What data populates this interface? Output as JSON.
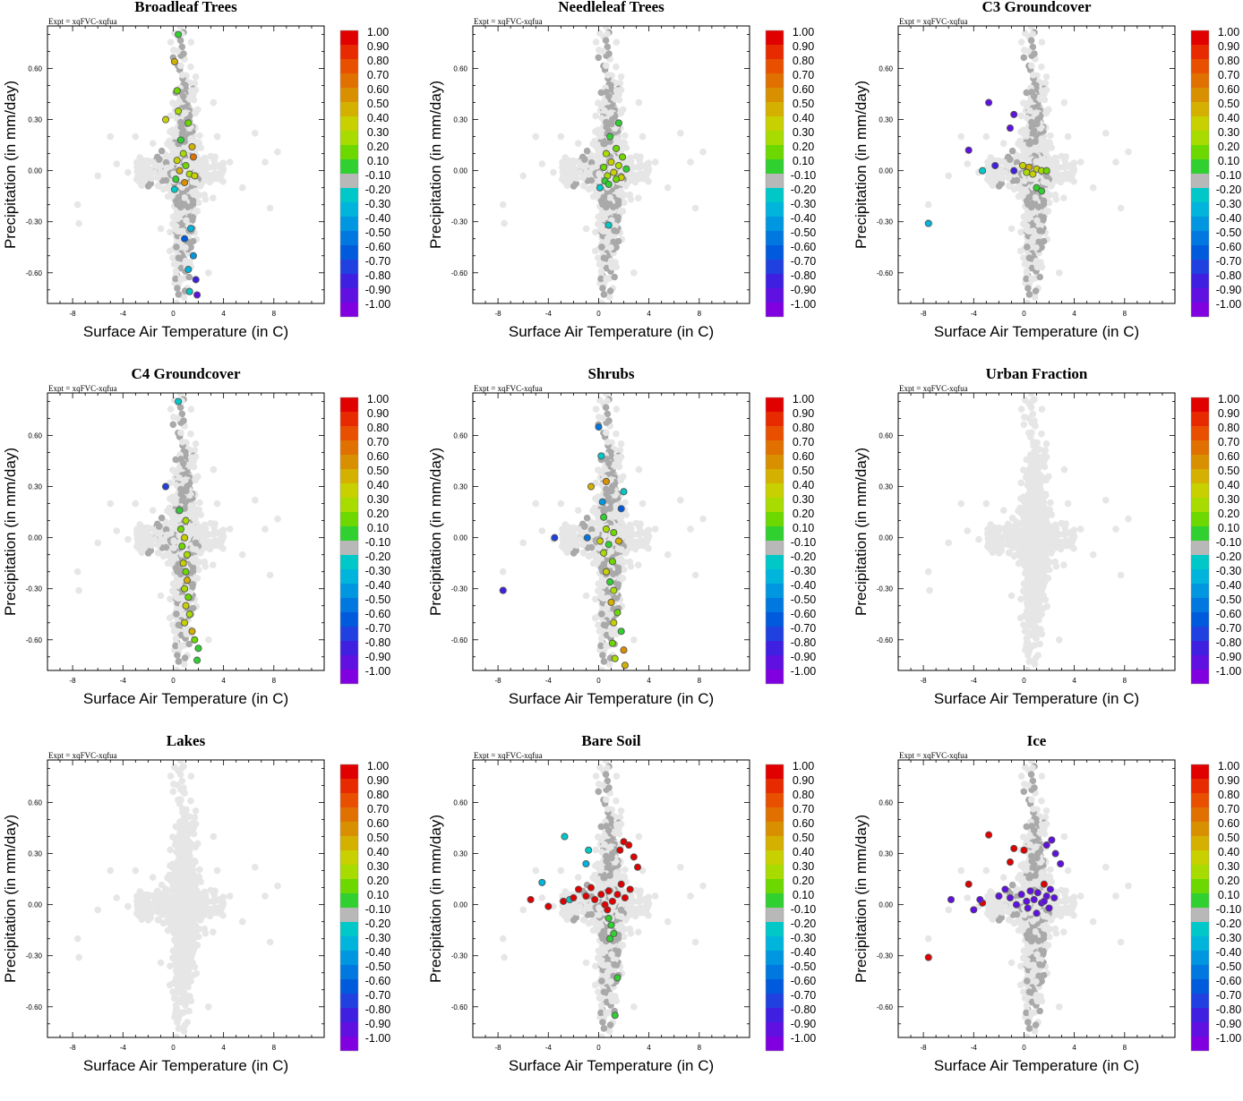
{
  "figure": {
    "experiment_label": "Expt = xqFVC-xqfua",
    "xlabel": "Surface Air Temperature (in C)",
    "ylabel": "Precipitation (in mm/day)",
    "x_ticks": [
      "-8",
      "-4",
      "0",
      "4",
      "8"
    ],
    "y_ticks": [
      "0.60",
      "0.30",
      "0.00",
      "-0.30",
      "-0.60"
    ],
    "colorbar_labels": [
      "1.00",
      "0.90",
      "0.80",
      "0.70",
      "0.60",
      "0.50",
      "0.40",
      "0.30",
      "0.20",
      "0.10",
      "-0.10",
      "-0.20",
      "-0.30",
      "-0.40",
      "-0.50",
      "-0.60",
      "-0.70",
      "-0.80",
      "-0.90",
      "-1.00"
    ],
    "colorbar_colors": [
      "#e00000",
      "#e82a00",
      "#e85000",
      "#e07000",
      "#d89000",
      "#d4b000",
      "#c8d000",
      "#a8dc00",
      "#6cd800",
      "#30d030",
      "#b8b8b8",
      "#00c8c8",
      "#00b4dc",
      "#0096e0",
      "#0078e0",
      "#005adc",
      "#2040e0",
      "#4020e0",
      "#6010e0",
      "#8000e0"
    ]
  },
  "chart_data": [
    {
      "type": "scatter",
      "title": "Broadleaf Trees",
      "xlabel": "Surface Air Temperature (in C)",
      "ylabel": "Precipitation (in mm/day)",
      "xlim": [
        -10,
        12
      ],
      "ylim": [
        -0.78,
        0.85
      ],
      "highlights": [
        {
          "x": 0.4,
          "y": 0.8,
          "v": 0.1
        },
        {
          "x": 0.1,
          "y": 0.64,
          "v": 0.5
        },
        {
          "x": 0.3,
          "y": 0.47,
          "v": 0.2
        },
        {
          "x": -0.6,
          "y": 0.3,
          "v": 0.4
        },
        {
          "x": 0.4,
          "y": 0.35,
          "v": 0.3
        },
        {
          "x": 1.2,
          "y": 0.28,
          "v": 0.2
        },
        {
          "x": 0.6,
          "y": 0.18,
          "v": 0.1
        },
        {
          "x": 1.5,
          "y": 0.14,
          "v": 0.5
        },
        {
          "x": 0.8,
          "y": 0.1,
          "v": 0.3
        },
        {
          "x": 1.6,
          "y": 0.08,
          "v": 0.7
        },
        {
          "x": 0.3,
          "y": 0.06,
          "v": 0.4
        },
        {
          "x": 1.0,
          "y": 0.03,
          "v": 0.2
        },
        {
          "x": 0.5,
          "y": 0.0,
          "v": 0.5
        },
        {
          "x": 1.3,
          "y": -0.02,
          "v": 0.3
        },
        {
          "x": 0.2,
          "y": -0.05,
          "v": 0.1
        },
        {
          "x": 1.7,
          "y": -0.03,
          "v": 0.4
        },
        {
          "x": 0.9,
          "y": -0.07,
          "v": 0.6
        },
        {
          "x": 0.1,
          "y": -0.11,
          "v": -0.2
        },
        {
          "x": 1.4,
          "y": -0.34,
          "v": -0.3
        },
        {
          "x": 0.9,
          "y": -0.4,
          "v": -0.6
        },
        {
          "x": 1.6,
          "y": -0.5,
          "v": -0.4
        },
        {
          "x": 1.2,
          "y": -0.58,
          "v": -0.3
        },
        {
          "x": 1.8,
          "y": -0.64,
          "v": -0.8
        },
        {
          "x": 1.3,
          "y": -0.71,
          "v": -0.2
        },
        {
          "x": 1.9,
          "y": -0.73,
          "v": -0.9
        },
        {
          "x": 2.0,
          "y": -0.82,
          "v": -0.8
        }
      ]
    },
    {
      "type": "scatter",
      "title": "Needleleaf Trees",
      "xlabel": "Surface Air Temperature (in C)",
      "ylabel": "Precipitation (in mm/day)",
      "xlim": [
        -10,
        12
      ],
      "ylim": [
        -0.78,
        0.85
      ],
      "highlights": [
        {
          "x": 1.6,
          "y": 0.28,
          "v": 0.1
        },
        {
          "x": 0.9,
          "y": 0.2,
          "v": 0.1
        },
        {
          "x": 1.4,
          "y": 0.13,
          "v": 0.2
        },
        {
          "x": 0.6,
          "y": 0.1,
          "v": 0.3
        },
        {
          "x": 1.9,
          "y": 0.08,
          "v": 0.2
        },
        {
          "x": 1.0,
          "y": 0.05,
          "v": 0.4
        },
        {
          "x": 1.6,
          "y": 0.03,
          "v": 0.3
        },
        {
          "x": 0.4,
          "y": 0.02,
          "v": 0.2
        },
        {
          "x": 2.2,
          "y": 0.01,
          "v": 0.1
        },
        {
          "x": 1.2,
          "y": -0.01,
          "v": 0.4
        },
        {
          "x": 0.7,
          "y": -0.03,
          "v": 0.3
        },
        {
          "x": 1.8,
          "y": -0.04,
          "v": 0.4
        },
        {
          "x": 0.5,
          "y": -0.06,
          "v": 0.1
        },
        {
          "x": 1.4,
          "y": -0.05,
          "v": 0.2
        },
        {
          "x": 0.8,
          "y": -0.08,
          "v": 0.1
        },
        {
          "x": 0.1,
          "y": -0.1,
          "v": -0.2
        },
        {
          "x": 0.8,
          "y": -0.32,
          "v": -0.2
        }
      ]
    },
    {
      "type": "scatter",
      "title": "C3 Groundcover",
      "xlabel": "Surface Air Temperature (in C)",
      "ylabel": "Precipitation (in mm/day)",
      "xlim": [
        -10,
        12
      ],
      "ylim": [
        -0.78,
        0.85
      ],
      "highlights": [
        {
          "x": -2.8,
          "y": 0.4,
          "v": -0.9
        },
        {
          "x": -0.8,
          "y": 0.33,
          "v": -0.9
        },
        {
          "x": -1.1,
          "y": 0.25,
          "v": -0.9
        },
        {
          "x": -4.4,
          "y": 0.12,
          "v": -0.9
        },
        {
          "x": -2.3,
          "y": 0.03,
          "v": -0.8
        },
        {
          "x": -0.1,
          "y": 0.03,
          "v": 0.4
        },
        {
          "x": 0.4,
          "y": 0.02,
          "v": 0.5
        },
        {
          "x": 1.0,
          "y": 0.01,
          "v": 0.4
        },
        {
          "x": 0.2,
          "y": -0.01,
          "v": 0.3
        },
        {
          "x": 0.7,
          "y": -0.02,
          "v": 0.4
        },
        {
          "x": 1.4,
          "y": 0.0,
          "v": 0.3
        },
        {
          "x": 1.8,
          "y": 0.0,
          "v": 0.2
        },
        {
          "x": -0.8,
          "y": 0.0,
          "v": -0.8
        },
        {
          "x": -3.3,
          "y": 0.0,
          "v": -0.2
        },
        {
          "x": 1.0,
          "y": -0.1,
          "v": 0.1
        },
        {
          "x": 1.4,
          "y": -0.12,
          "v": 0.1
        },
        {
          "x": -7.6,
          "y": -0.31,
          "v": -0.3
        }
      ]
    },
    {
      "type": "scatter",
      "title": "C4 Groundcover",
      "xlabel": "Surface Air Temperature (in C)",
      "ylabel": "Precipitation (in mm/day)",
      "xlim": [
        -10,
        12
      ],
      "ylim": [
        -0.78,
        0.85
      ],
      "highlights": [
        {
          "x": 0.4,
          "y": 0.8,
          "v": -0.2
        },
        {
          "x": -0.6,
          "y": 0.3,
          "v": -0.7
        },
        {
          "x": 0.5,
          "y": 0.16,
          "v": 0.1
        },
        {
          "x": 1.0,
          "y": 0.1,
          "v": 0.3
        },
        {
          "x": 0.6,
          "y": 0.05,
          "v": 0.2
        },
        {
          "x": 0.9,
          "y": 0.0,
          "v": 0.4
        },
        {
          "x": 0.7,
          "y": -0.05,
          "v": 0.2
        },
        {
          "x": 1.1,
          "y": -0.1,
          "v": 0.3
        },
        {
          "x": 0.8,
          "y": -0.15,
          "v": 0.4
        },
        {
          "x": 1.0,
          "y": -0.2,
          "v": 0.2
        },
        {
          "x": 1.1,
          "y": -0.25,
          "v": 0.5
        },
        {
          "x": 0.9,
          "y": -0.3,
          "v": 0.3
        },
        {
          "x": 1.2,
          "y": -0.35,
          "v": 0.2
        },
        {
          "x": 1.0,
          "y": -0.4,
          "v": 0.4
        },
        {
          "x": 1.3,
          "y": -0.45,
          "v": 0.3
        },
        {
          "x": 0.9,
          "y": -0.5,
          "v": 0.4
        },
        {
          "x": 1.5,
          "y": -0.55,
          "v": 0.5
        },
        {
          "x": 1.7,
          "y": -0.6,
          "v": 0.2
        },
        {
          "x": 2.0,
          "y": -0.65,
          "v": 0.1
        },
        {
          "x": 1.9,
          "y": -0.72,
          "v": 0.1
        },
        {
          "x": 2.0,
          "y": -0.8,
          "v": 0.1
        }
      ]
    },
    {
      "type": "scatter",
      "title": "Shrubs",
      "xlabel": "Surface Air Temperature (in C)",
      "ylabel": "Precipitation (in mm/day)",
      "xlim": [
        -10,
        12
      ],
      "ylim": [
        -0.78,
        0.85
      ],
      "highlights": [
        {
          "x": 0.0,
          "y": 0.65,
          "v": -0.5
        },
        {
          "x": 0.2,
          "y": 0.48,
          "v": -0.2
        },
        {
          "x": -0.6,
          "y": 0.3,
          "v": 0.5
        },
        {
          "x": 0.6,
          "y": 0.33,
          "v": 0.6
        },
        {
          "x": 2.0,
          "y": 0.27,
          "v": -0.2
        },
        {
          "x": 0.3,
          "y": 0.21,
          "v": -0.4
        },
        {
          "x": 1.8,
          "y": 0.17,
          "v": -0.6
        },
        {
          "x": 0.4,
          "y": 0.12,
          "v": 0.1
        },
        {
          "x": -3.5,
          "y": 0.0,
          "v": -0.7
        },
        {
          "x": -0.9,
          "y": 0.0,
          "v": -0.5
        },
        {
          "x": 0.6,
          "y": 0.05,
          "v": 0.3
        },
        {
          "x": 1.2,
          "y": 0.03,
          "v": 0.2
        },
        {
          "x": 0.1,
          "y": -0.02,
          "v": 0.4
        },
        {
          "x": 0.8,
          "y": -0.04,
          "v": 0.1
        },
        {
          "x": 1.6,
          "y": -0.02,
          "v": 0.5
        },
        {
          "x": 0.4,
          "y": -0.09,
          "v": 0.3
        },
        {
          "x": 1.1,
          "y": -0.14,
          "v": 0.2
        },
        {
          "x": 0.6,
          "y": -0.2,
          "v": 0.4
        },
        {
          "x": 0.9,
          "y": -0.26,
          "v": 0.1
        },
        {
          "x": 1.2,
          "y": -0.31,
          "v": 0.3
        },
        {
          "x": 1.0,
          "y": -0.38,
          "v": 0.5
        },
        {
          "x": 1.5,
          "y": -0.44,
          "v": 0.2
        },
        {
          "x": 1.2,
          "y": -0.5,
          "v": 0.4
        },
        {
          "x": 1.8,
          "y": -0.55,
          "v": 0.1
        },
        {
          "x": 1.1,
          "y": -0.62,
          "v": 0.2
        },
        {
          "x": 2.0,
          "y": -0.66,
          "v": 0.6
        },
        {
          "x": 1.3,
          "y": -0.71,
          "v": 0.3
        },
        {
          "x": 2.1,
          "y": -0.75,
          "v": 0.5
        },
        {
          "x": 1.9,
          "y": -0.82,
          "v": 0.7
        },
        {
          "x": -7.6,
          "y": -0.31,
          "v": -0.8
        }
      ]
    },
    {
      "type": "scatter",
      "title": "Urban Fraction",
      "xlabel": "Surface Air Temperature (in C)",
      "ylabel": "Precipitation (in mm/day)",
      "xlim": [
        -10,
        12
      ],
      "ylim": [
        -0.78,
        0.85
      ],
      "highlights": []
    },
    {
      "type": "scatter",
      "title": "Lakes",
      "xlabel": "Surface Air Temperature (in C)",
      "ylabel": "Precipitation (in mm/day)",
      "xlim": [
        -10,
        12
      ],
      "ylim": [
        -0.78,
        0.85
      ],
      "highlights": []
    },
    {
      "type": "scatter",
      "title": "Bare Soil",
      "xlabel": "Surface Air Temperature (in C)",
      "ylabel": "Precipitation (in mm/day)",
      "xlim": [
        -10,
        12
      ],
      "ylim": [
        -0.78,
        0.85
      ],
      "highlights": [
        {
          "x": -2.7,
          "y": 0.4,
          "v": -0.2
        },
        {
          "x": -0.8,
          "y": 0.32,
          "v": -0.2
        },
        {
          "x": -1.0,
          "y": 0.24,
          "v": -0.3
        },
        {
          "x": -4.5,
          "y": 0.13,
          "v": -0.3
        },
        {
          "x": -2.3,
          "y": 0.03,
          "v": -0.2
        },
        {
          "x": -5.4,
          "y": 0.03,
          "v": 1.0
        },
        {
          "x": -4.0,
          "y": -0.01,
          "v": 1.0
        },
        {
          "x": -2.0,
          "y": 0.04,
          "v": 1.0
        },
        {
          "x": -1.6,
          "y": 0.09,
          "v": 1.0
        },
        {
          "x": -1.0,
          "y": 0.05,
          "v": 1.0
        },
        {
          "x": -0.6,
          "y": 0.1,
          "v": 1.0
        },
        {
          "x": -0.3,
          "y": 0.03,
          "v": 1.0
        },
        {
          "x": 0.2,
          "y": 0.06,
          "v": 1.0
        },
        {
          "x": 0.5,
          "y": 0.0,
          "v": 1.0
        },
        {
          "x": 0.8,
          "y": 0.08,
          "v": 1.0
        },
        {
          "x": 1.1,
          "y": 0.02,
          "v": 1.0
        },
        {
          "x": 1.5,
          "y": 0.06,
          "v": 1.0
        },
        {
          "x": 1.8,
          "y": 0.12,
          "v": 1.0
        },
        {
          "x": 2.1,
          "y": 0.04,
          "v": 1.0
        },
        {
          "x": 2.5,
          "y": 0.09,
          "v": 1.0
        },
        {
          "x": 1.7,
          "y": 0.32,
          "v": 1.0
        },
        {
          "x": 2.0,
          "y": 0.37,
          "v": 1.0
        },
        {
          "x": 2.4,
          "y": 0.35,
          "v": 1.0
        },
        {
          "x": 2.8,
          "y": 0.28,
          "v": 1.0
        },
        {
          "x": 3.1,
          "y": 0.22,
          "v": 1.0
        },
        {
          "x": -2.8,
          "y": 0.02,
          "v": 1.0
        },
        {
          "x": 0.7,
          "y": -0.03,
          "v": 1.0
        },
        {
          "x": 0.8,
          "y": -0.08,
          "v": 0.1
        },
        {
          "x": 1.0,
          "y": -0.12,
          "v": 0.1
        },
        {
          "x": 1.2,
          "y": -0.17,
          "v": 0.1
        },
        {
          "x": 0.9,
          "y": -0.2,
          "v": 0.1
        },
        {
          "x": 1.5,
          "y": -0.43,
          "v": 0.1
        },
        {
          "x": 1.3,
          "y": -0.65,
          "v": 0.1
        }
      ]
    },
    {
      "type": "scatter",
      "title": "Ice",
      "xlabel": "Surface Air Temperature (in C)",
      "ylabel": "Precipitation (in mm/day)",
      "xlim": [
        -10,
        12
      ],
      "ylim": [
        -0.78,
        0.85
      ],
      "highlights": [
        {
          "x": -2.8,
          "y": 0.41,
          "v": 1.0
        },
        {
          "x": -0.8,
          "y": 0.33,
          "v": 1.0
        },
        {
          "x": -1.1,
          "y": 0.25,
          "v": 1.0
        },
        {
          "x": -4.4,
          "y": 0.12,
          "v": 1.0
        },
        {
          "x": 0.0,
          "y": 0.32,
          "v": 1.0
        },
        {
          "x": 1.6,
          "y": 0.12,
          "v": 1.0
        },
        {
          "x": -7.6,
          "y": -0.31,
          "v": 1.0
        },
        {
          "x": -3.3,
          "y": 0.01,
          "v": 1.0
        },
        {
          "x": -5.8,
          "y": 0.03,
          "v": -0.9
        },
        {
          "x": -4.0,
          "y": -0.03,
          "v": -0.9
        },
        {
          "x": -3.5,
          "y": 0.03,
          "v": -0.9
        },
        {
          "x": -2.0,
          "y": 0.05,
          "v": -0.9
        },
        {
          "x": -1.5,
          "y": 0.09,
          "v": -0.9
        },
        {
          "x": -1.1,
          "y": 0.04,
          "v": -0.9
        },
        {
          "x": -0.6,
          "y": 0.0,
          "v": -0.9
        },
        {
          "x": -0.2,
          "y": 0.06,
          "v": -0.9
        },
        {
          "x": 0.2,
          "y": 0.02,
          "v": -0.9
        },
        {
          "x": 0.5,
          "y": 0.08,
          "v": -0.9
        },
        {
          "x": 0.8,
          "y": 0.03,
          "v": -0.9
        },
        {
          "x": 1.1,
          "y": 0.07,
          "v": -0.9
        },
        {
          "x": 1.4,
          "y": 0.01,
          "v": -0.9
        },
        {
          "x": 1.8,
          "y": 0.05,
          "v": -0.9
        },
        {
          "x": 2.1,
          "y": 0.09,
          "v": -0.9
        },
        {
          "x": 2.4,
          "y": 0.04,
          "v": -0.9
        },
        {
          "x": 0.3,
          "y": -0.02,
          "v": -0.9
        },
        {
          "x": 1.0,
          "y": -0.05,
          "v": -0.9
        },
        {
          "x": 1.8,
          "y": 0.35,
          "v": -0.9
        },
        {
          "x": 2.2,
          "y": 0.38,
          "v": -0.9
        },
        {
          "x": 2.5,
          "y": 0.3,
          "v": -0.9
        },
        {
          "x": 2.9,
          "y": 0.24,
          "v": -0.9
        },
        {
          "x": 1.6,
          "y": 0.02,
          "v": -0.9
        },
        {
          "x": 2.0,
          "y": -0.02,
          "v": -0.9
        }
      ]
    }
  ]
}
